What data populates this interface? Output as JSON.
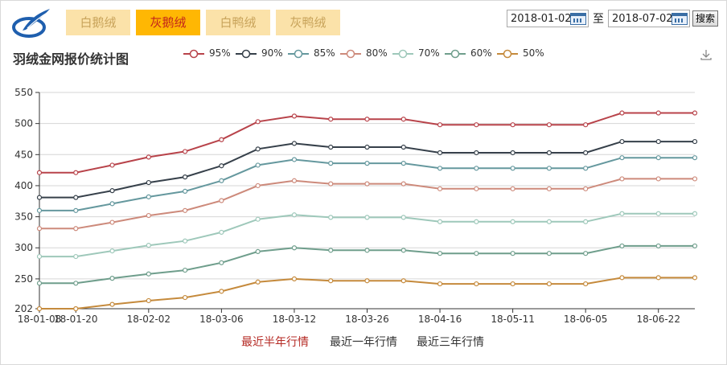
{
  "tabs": [
    {
      "label": "白鹅绒",
      "active": false
    },
    {
      "label": "灰鹅绒",
      "active": true
    },
    {
      "label": "白鸭绒",
      "active": false
    },
    {
      "label": "灰鸭绒",
      "active": false
    }
  ],
  "date_range": {
    "start": "2018-01-02",
    "to_label": "至",
    "end": "2018-07-02",
    "search_label": "搜索"
  },
  "period_links": [
    {
      "label": "最近半年行情",
      "active": true
    },
    {
      "label": "最近一年行情",
      "active": false
    },
    {
      "label": "最近三年行情",
      "active": false
    }
  ],
  "colors": {
    "accent_tab": "#ffb703",
    "tab_bg": "#fbe2a9",
    "active_link": "#b52a24"
  },
  "chart_data": {
    "type": "line",
    "title": "羽绒金网报价统计图",
    "xlabel": "",
    "ylabel": "",
    "x": [
      "18-01-08",
      "18-01-20",
      "18-01-27",
      "18-02-02",
      "18-02-11",
      "18-03-06",
      "18-03-07",
      "18-03-12",
      "18-03-19",
      "18-03-26",
      "18-04-02",
      "18-04-16",
      "18-04-23",
      "18-05-11",
      "18-05-21",
      "18-06-05",
      "18-06-12",
      "18-06-22",
      "18-07-02"
    ],
    "x_tick_labels": [
      "18-01-08",
      "18-01-20",
      "18-02-02",
      "18-03-06",
      "18-03-12",
      "18-03-26",
      "18-04-16",
      "18-05-11",
      "18-06-05",
      "18-06-22"
    ],
    "y_ticks": [
      202,
      250,
      300,
      350,
      400,
      450,
      500,
      550
    ],
    "ylim": [
      202,
      550
    ],
    "grid": true,
    "legend_position": "top",
    "series": [
      {
        "name": "95%",
        "color": "#b8434a",
        "values": [
          421,
          421,
          433,
          446,
          455,
          474,
          503,
          512,
          507,
          507,
          507,
          498,
          498,
          498,
          498,
          498,
          517,
          517,
          517
        ]
      },
      {
        "name": "90%",
        "color": "#36404a",
        "values": [
          381,
          381,
          392,
          405,
          414,
          432,
          459,
          468,
          462,
          462,
          462,
          453,
          453,
          453,
          453,
          453,
          471,
          471,
          471
        ]
      },
      {
        "name": "85%",
        "color": "#65989e",
        "values": [
          360,
          360,
          371,
          382,
          391,
          408,
          433,
          442,
          436,
          436,
          436,
          428,
          428,
          428,
          428,
          428,
          445,
          445,
          445
        ]
      },
      {
        "name": "80%",
        "color": "#cd8a7b",
        "values": [
          331,
          331,
          341,
          352,
          360,
          376,
          400,
          408,
          403,
          403,
          403,
          395,
          395,
          395,
          395,
          395,
          411,
          411,
          411
        ]
      },
      {
        "name": "70%",
        "color": "#9ec8ba",
        "values": [
          286,
          286,
          295,
          304,
          311,
          325,
          346,
          353,
          349,
          349,
          349,
          342,
          342,
          342,
          342,
          342,
          355,
          355,
          355
        ]
      },
      {
        "name": "60%",
        "color": "#6f9e8c",
        "values": [
          243,
          243,
          251,
          258,
          264,
          276,
          294,
          300,
          296,
          296,
          296,
          291,
          291,
          291,
          291,
          291,
          303,
          303,
          303
        ]
      },
      {
        "name": "50%",
        "color": "#c58a3c",
        "values": [
          202,
          202,
          209,
          215,
          220,
          230,
          245,
          250,
          247,
          247,
          247,
          242,
          242,
          242,
          242,
          242,
          252,
          252,
          252
        ]
      }
    ]
  }
}
